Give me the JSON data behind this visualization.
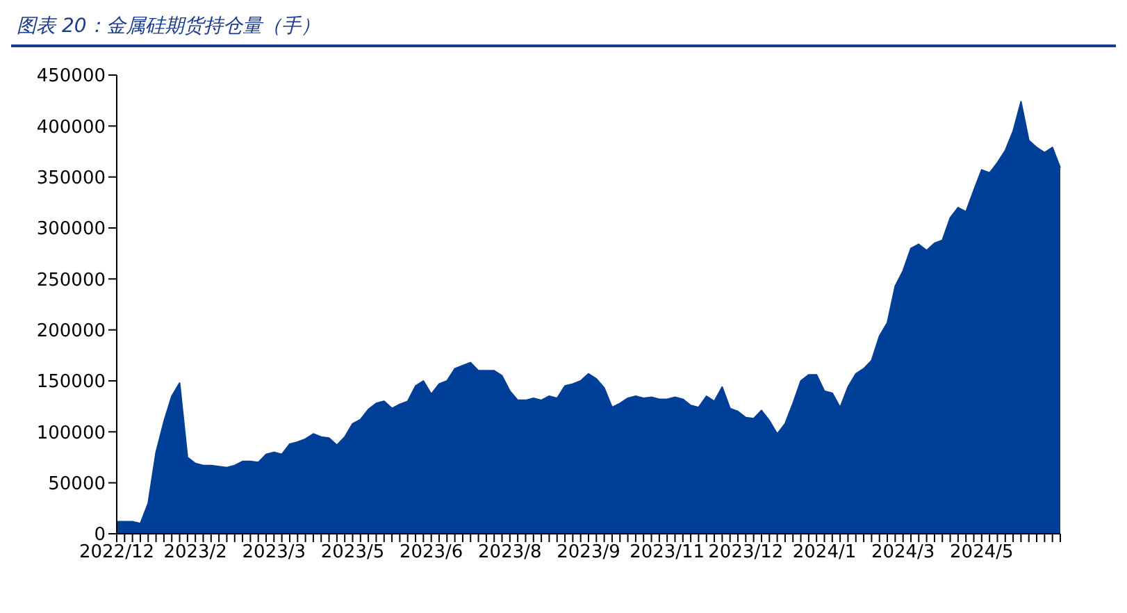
{
  "chart_data": {
    "type": "area",
    "title": "图表 20：金属硅期货持仓量（手）",
    "categories": [
      "2022/12",
      null,
      null,
      null,
      null,
      null,
      null,
      null,
      null,
      null,
      "2023/2",
      null,
      null,
      null,
      null,
      null,
      null,
      null,
      null,
      null,
      "2023/3",
      null,
      null,
      null,
      null,
      null,
      null,
      null,
      null,
      null,
      "2023/5",
      null,
      null,
      null,
      null,
      null,
      null,
      null,
      null,
      null,
      "2023/6",
      null,
      null,
      null,
      null,
      null,
      null,
      null,
      null,
      null,
      "2023/8",
      null,
      null,
      null,
      null,
      null,
      null,
      null,
      null,
      null,
      "2023/9",
      null,
      null,
      null,
      null,
      null,
      null,
      null,
      null,
      null,
      "2023/11",
      null,
      null,
      null,
      null,
      null,
      null,
      null,
      null,
      null,
      "2023/12",
      null,
      null,
      null,
      null,
      null,
      null,
      null,
      null,
      null,
      "2024/1",
      null,
      null,
      null,
      null,
      null,
      null,
      null,
      null,
      null,
      "2024/3",
      null,
      null,
      null,
      null,
      null,
      null,
      null,
      null,
      null,
      "2024/5",
      null,
      null,
      null,
      null,
      null,
      null,
      null,
      null,
      null,
      null
    ],
    "series": [
      {
        "color": "#003f98",
        "values": [
          12000,
          12000,
          12000,
          10000,
          30000,
          80000,
          110000,
          135000,
          148000,
          75000,
          69000,
          67000,
          67000,
          66000,
          65000,
          67000,
          71000,
          71000,
          70000,
          78000,
          80000,
          78000,
          88000,
          90000,
          93000,
          98000,
          95000,
          94000,
          87000,
          95000,
          108000,
          112000,
          122000,
          128000,
          130000,
          123000,
          127000,
          130000,
          145000,
          150000,
          137000,
          147000,
          150000,
          162000,
          165000,
          168000,
          160000,
          160000,
          160000,
          155000,
          140000,
          131000,
          131000,
          133000,
          131000,
          135000,
          133000,
          145000,
          147000,
          150000,
          157000,
          152000,
          143000,
          124000,
          128000,
          133000,
          135000,
          133000,
          134000,
          132000,
          132000,
          134000,
          132000,
          126000,
          124000,
          135000,
          130000,
          144000,
          123000,
          120000,
          114000,
          113000,
          121000,
          111000,
          98000,
          108000,
          128000,
          150000,
          156000,
          156000,
          140000,
          138000,
          124000,
          144000,
          157000,
          162000,
          170000,
          194000,
          207000,
          243000,
          258000,
          280000,
          284000,
          278000,
          285000,
          288000,
          310000,
          320000,
          316000,
          337000,
          357000,
          354000,
          364000,
          376000,
          395000,
          424000,
          386000,
          379000,
          374000,
          379000,
          359000
        ]
      }
    ],
    "ylim": [
      0,
      450000
    ],
    "yticks": [
      0,
      50000,
      100000,
      150000,
      200000,
      250000,
      300000,
      350000,
      400000,
      450000
    ],
    "grid": false,
    "legend": false
  }
}
